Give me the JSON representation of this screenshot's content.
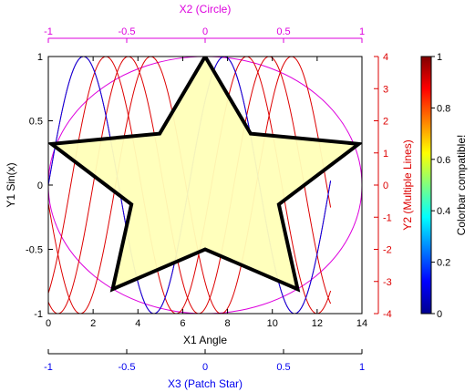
{
  "chart_data": {
    "type": "line",
    "colors": {
      "black": "#000000",
      "sin": "#0000ee",
      "lines": "#dd0000",
      "circle": "#dd00dd",
      "star_fill": "#ffffb8",
      "star_edge": "#000000",
      "patch_axis": "#0000ee"
    },
    "axes": {
      "x1": {
        "label": "X1 Angle",
        "range": [
          0,
          14
        ],
        "ticks": [
          0,
          2,
          4,
          6,
          8,
          10,
          12,
          14
        ]
      },
      "y1": {
        "label": "Y1 Sin(x)",
        "range": [
          -1,
          1
        ],
        "ticks": [
          -1,
          -0.5,
          0,
          0.5,
          1
        ],
        "tick_labels": [
          "-1",
          "-0.5",
          "0",
          "0.5",
          "1"
        ]
      },
      "x2": {
        "label": "X2 (Circle)",
        "range": [
          -1,
          1
        ],
        "ticks": [
          -1,
          -0.5,
          0,
          0.5,
          1
        ],
        "tick_labels": [
          "-1",
          "-0.5",
          "0",
          "0.5",
          "1"
        ]
      },
      "y2": {
        "label": "Y2 (Multiple Lines)",
        "range": [
          -4,
          4
        ],
        "ticks": [
          -4,
          -3,
          -2,
          -1,
          0,
          1,
          2,
          3,
          4
        ]
      },
      "x3": {
        "label": "X3 (Patch Star)",
        "range": [
          -1,
          1
        ],
        "ticks": [
          -1,
          -0.5,
          0,
          0.5,
          1
        ],
        "tick_labels": [
          "-1",
          "-0.5",
          "0",
          "0.5",
          "1"
        ]
      }
    },
    "colorbar": {
      "label": "Colorbar compatible!",
      "range": [
        0,
        1
      ],
      "ticks": [
        0,
        0.2,
        0.4,
        0.6,
        0.8,
        1
      ],
      "tick_labels": [
        "0",
        "0.2",
        "0.4",
        "0.6",
        "0.8",
        "1"
      ],
      "colormap": "jet"
    },
    "series": [
      {
        "kind": "sin",
        "axes": "x1y1",
        "color_key": "sin",
        "function": "sin(x)",
        "x_range": [
          0,
          12.6
        ],
        "samples": 260
      },
      {
        "kind": "multiple-lines",
        "axes": "x1y2",
        "color_key": "lines",
        "lines": [
          {
            "function": "4*sin(x)",
            "x_range": [
              0,
              12.6
            ]
          },
          {
            "function": "4*sin(x - 1)",
            "x_range": [
              0,
              12.6
            ]
          },
          {
            "function": "4*sin(x - 2)",
            "x_range": [
              0,
              12.6
            ]
          },
          {
            "function": "4*sin(x - 3)",
            "x_range": [
              0,
              12.6
            ]
          }
        ]
      },
      {
        "kind": "circle",
        "axes": "x2y1",
        "color_key": "circle",
        "center": [
          0,
          0
        ],
        "radius": 1
      },
      {
        "kind": "patch-star",
        "axes": "x3y1",
        "color_key": "star_fill",
        "edge_key": "star_edge",
        "vertices": [
          [
            0,
            1
          ],
          [
            -0.29,
            0.4
          ],
          [
            -0.98,
            0.32
          ],
          [
            -0.47,
            -0.15
          ],
          [
            -0.59,
            -0.81
          ],
          [
            0,
            -0.5
          ],
          [
            0.59,
            -0.81
          ],
          [
            0.47,
            -0.15
          ],
          [
            0.98,
            0.32
          ],
          [
            0.29,
            0.4
          ]
        ]
      }
    ]
  }
}
